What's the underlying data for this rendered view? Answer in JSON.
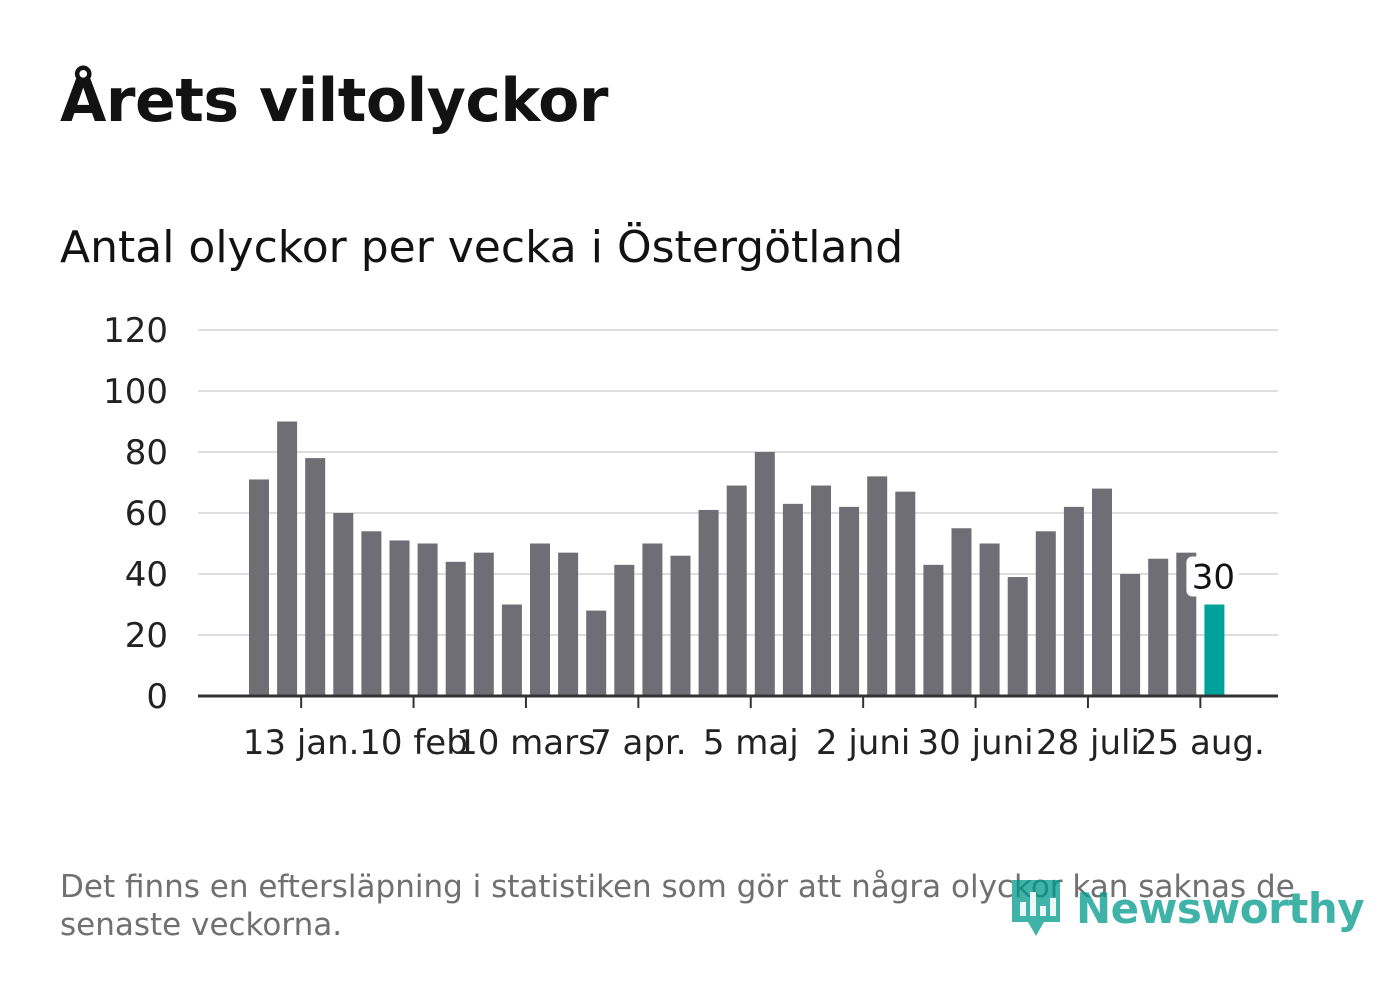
{
  "title": "Årets viltolyckor",
  "subtitle": "Antal olyckor per vecka i Östergötland",
  "footnote": "Det finns en eftersläpning i statistiken som gör att några olyckor kan saknas de senaste veckorna.",
  "logo": {
    "text": "Newsworthy",
    "icon": "newsworthy-bar-chart-icon"
  },
  "colors": {
    "bar": "#6f6e74",
    "highlight": "#00a19a",
    "grid": "#dddddd",
    "axis": "#333333"
  },
  "chart_data": {
    "type": "bar",
    "ylim": [
      0,
      120
    ],
    "yticks": [
      "0",
      "20",
      "40",
      "60",
      "80",
      "100",
      "120"
    ],
    "values": [
      71,
      90,
      78,
      60,
      54,
      51,
      50,
      44,
      47,
      30,
      50,
      47,
      28,
      43,
      50,
      46,
      61,
      69,
      80,
      63,
      69,
      62,
      72,
      67,
      43,
      55,
      50,
      39,
      54,
      62,
      68,
      40,
      45,
      47,
      30
    ],
    "xticks": [
      {
        "index": 1,
        "label": "13 jan."
      },
      {
        "index": 5,
        "label": "10 feb"
      },
      {
        "index": 9,
        "label": "10 mars"
      },
      {
        "index": 13,
        "label": "7 apr."
      },
      {
        "index": 17,
        "label": "5 maj"
      },
      {
        "index": 21,
        "label": "2 juni"
      },
      {
        "index": 25,
        "label": "30 juni"
      },
      {
        "index": 29,
        "label": "28 juli"
      },
      {
        "index": 33,
        "label": "25 aug."
      }
    ],
    "highlight_index": 34,
    "highlight_label": "30",
    "grid": true,
    "legend": "none"
  }
}
